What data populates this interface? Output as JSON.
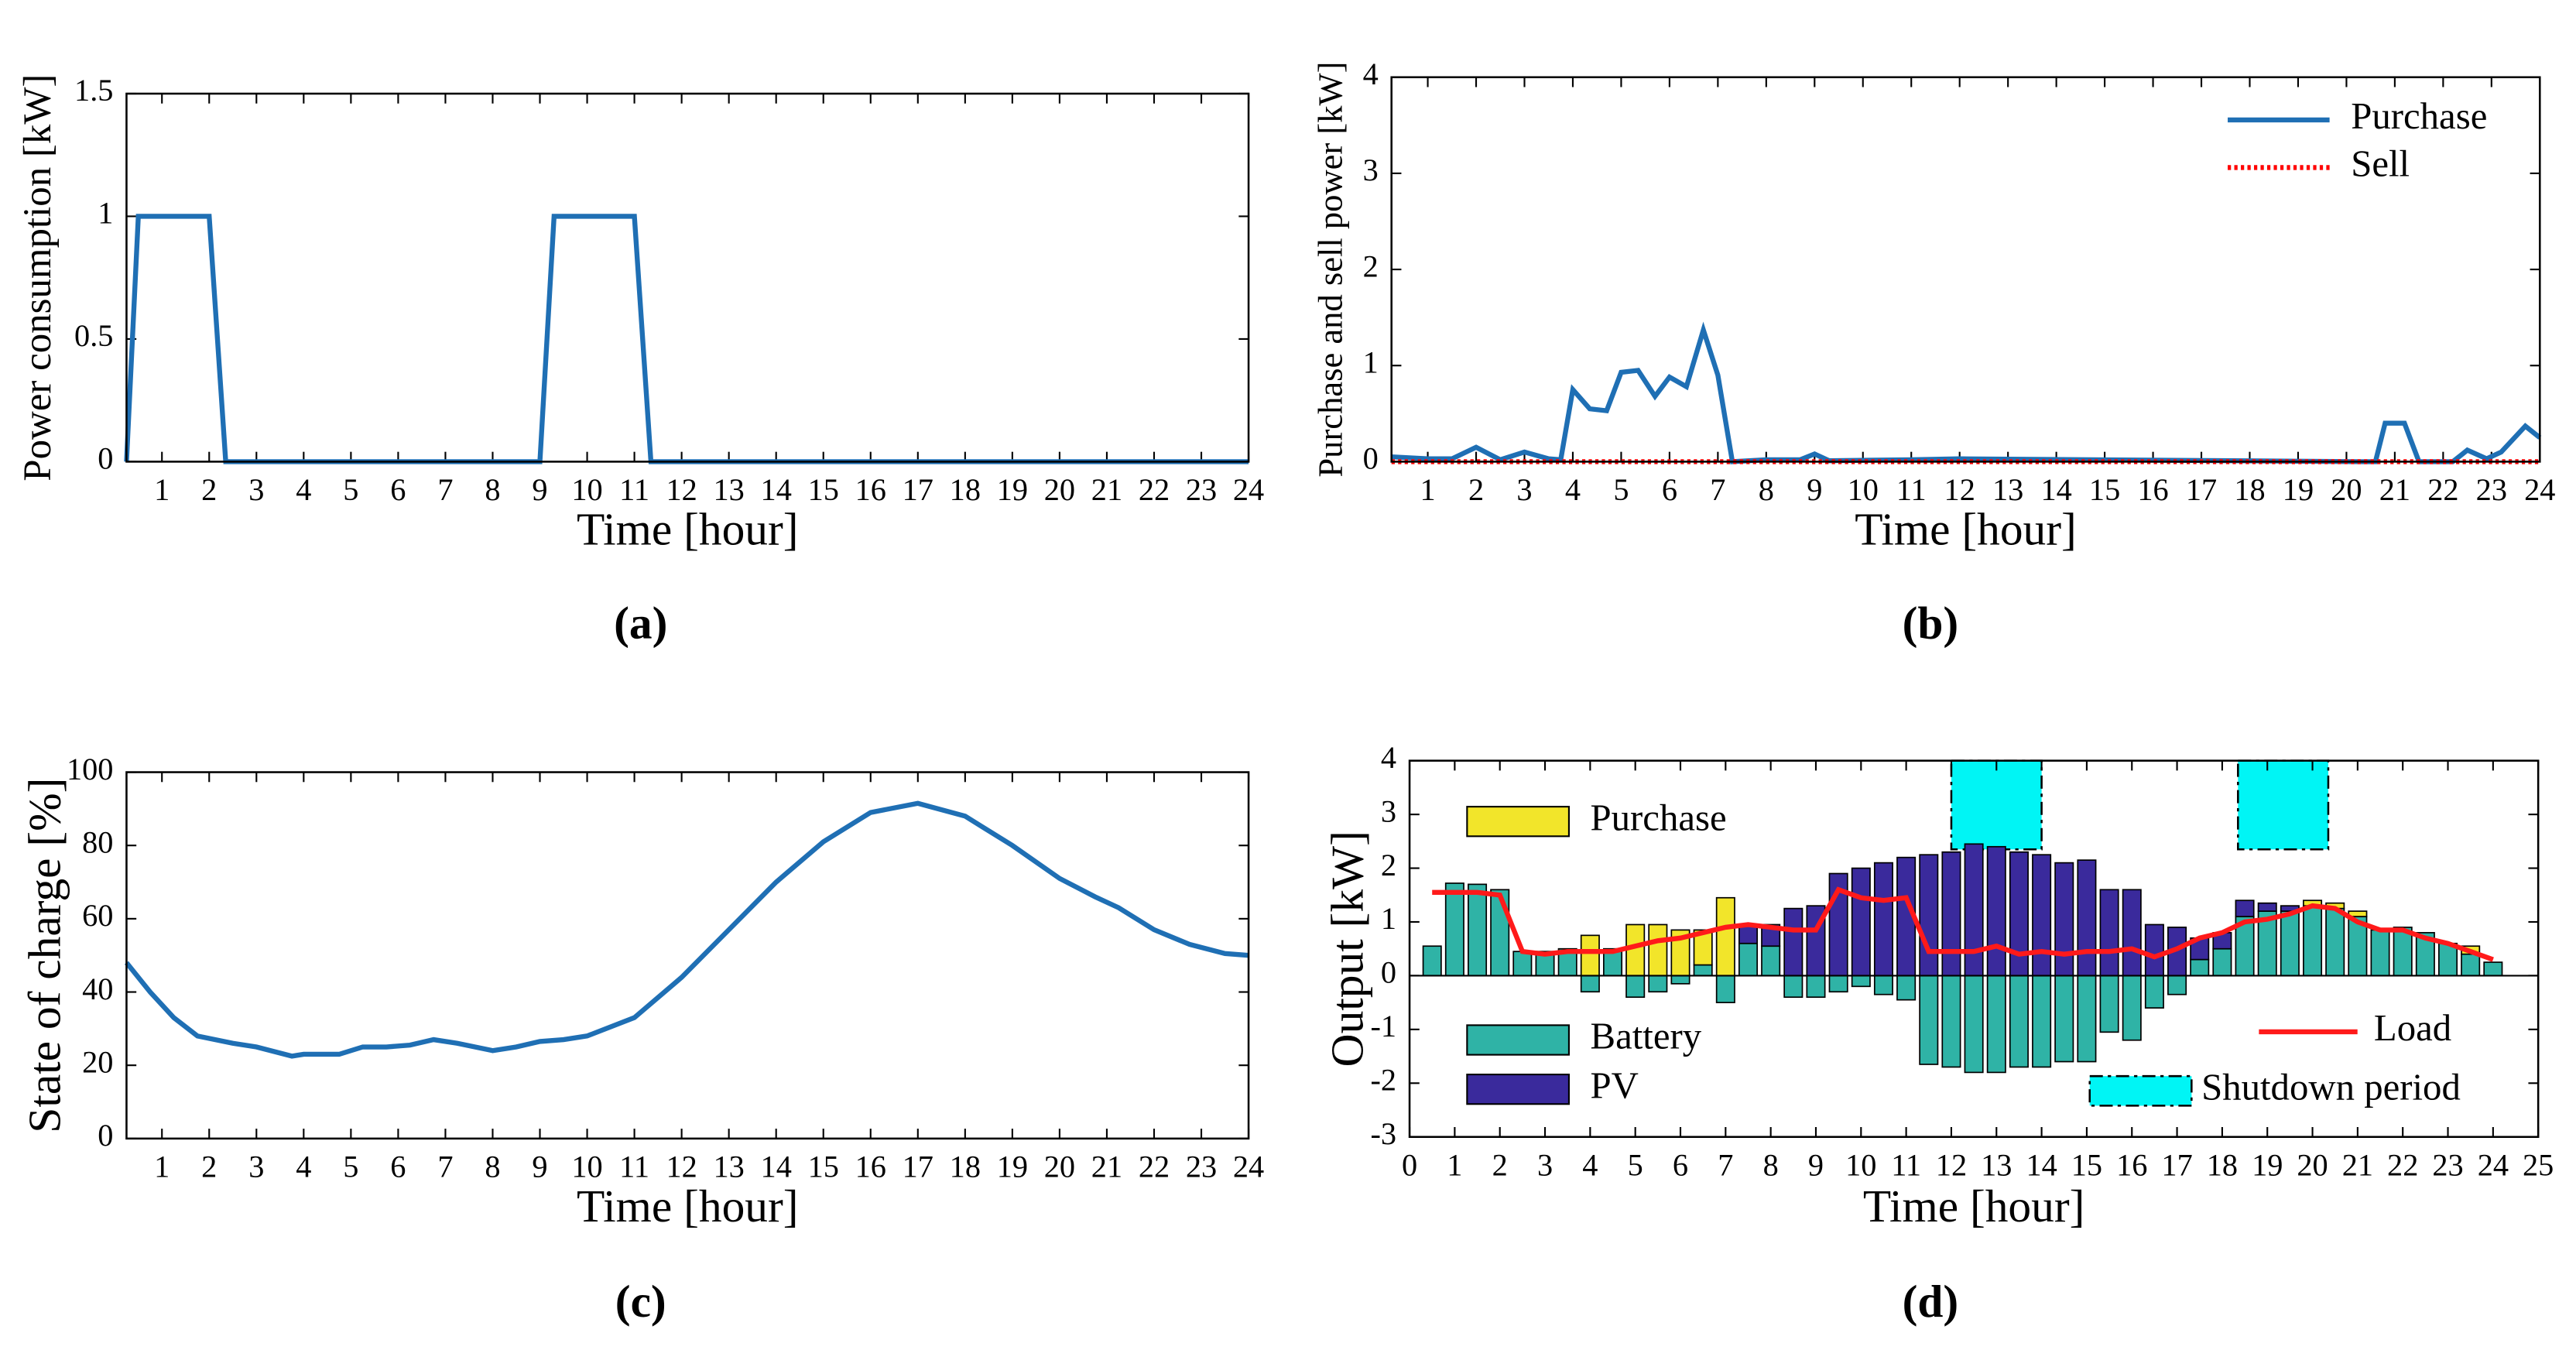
{
  "chart_data": [
    {
      "type": "line",
      "label": "(a)",
      "xlabel": "Time [hour]",
      "ylabel": "Power consumption [kW]",
      "color": "#1f6fb4",
      "x": [
        0.25,
        0.5,
        2,
        2.35,
        9,
        9.3,
        11,
        11.35,
        24
      ],
      "values": [
        0,
        1,
        1,
        0,
        0,
        1,
        1,
        0,
        0
      ],
      "xlim": [
        0.25,
        24
      ],
      "xticks": [
        1,
        2,
        3,
        4,
        5,
        6,
        7,
        8,
        9,
        10,
        11,
        12,
        13,
        14,
        15,
        16,
        17,
        18,
        19,
        20,
        21,
        22,
        23,
        24
      ],
      "ylim": [
        0,
        1.5
      ],
      "yticks": [
        0,
        0.5,
        1,
        1.5
      ]
    },
    {
      "type": "line",
      "label": "(b)",
      "xlabel": "Time [hour]",
      "ylabel": "Purchase and sell power [kW]",
      "legend": "upper right",
      "series": [
        {
          "name": "Purchase",
          "color": "#1f6fb4",
          "dash": "solid",
          "x": [
            0.25,
            1,
            1.5,
            2,
            2.5,
            3,
            3.5,
            3.75,
            4,
            4.35,
            4.7,
            5,
            5.35,
            5.7,
            6,
            6.35,
            6.7,
            7,
            7.3,
            8,
            8.7,
            9,
            9.3,
            11,
            12,
            20.3,
            20.6,
            20.8,
            21.2,
            21.5,
            22.2,
            22.5,
            22.9,
            23.2,
            23.7,
            24
          ],
          "values": [
            0.05,
            0.03,
            0.03,
            0.15,
            0.02,
            0.1,
            0.03,
            0.02,
            0.75,
            0.55,
            0.53,
            0.93,
            0.95,
            0.68,
            0.88,
            0.78,
            1.37,
            0.9,
            0,
            0.02,
            0.02,
            0.08,
            0.01,
            0.02,
            0.03,
            0,
            0,
            0.4,
            0.4,
            0,
            0,
            0.12,
            0.03,
            0.1,
            0.37,
            0.25
          ]
        },
        {
          "name": "Sell",
          "color": "#ff0000",
          "dash": "dotted",
          "x": [
            0.25,
            24
          ],
          "values": [
            0,
            0
          ]
        }
      ],
      "xlim": [
        0.25,
        24
      ],
      "xticks": [
        1,
        2,
        3,
        4,
        5,
        6,
        7,
        8,
        9,
        10,
        11,
        12,
        13,
        14,
        15,
        16,
        17,
        18,
        19,
        20,
        21,
        22,
        23,
        24
      ],
      "ylim": [
        0,
        4
      ],
      "yticks": [
        0,
        1,
        2,
        3,
        4
      ]
    },
    {
      "type": "line",
      "label": "(c)",
      "xlabel": "Time [hour]",
      "ylabel": "State of charge [%]",
      "color": "#1f6fb4",
      "x": [
        0.25,
        0.75,
        1.25,
        1.75,
        2.5,
        3,
        3.75,
        4,
        4.75,
        5.25,
        5.75,
        6.25,
        6.75,
        7.25,
        8,
        8.5,
        9,
        9.5,
        10,
        11,
        12,
        13,
        14,
        15,
        16,
        17,
        18,
        19,
        20,
        20.75,
        21.25,
        22,
        22.75,
        23.5,
        24
      ],
      "values": [
        48,
        40,
        33,
        28,
        26,
        25,
        22.5,
        23,
        23,
        25,
        25,
        25.5,
        27,
        26,
        24,
        25,
        26.5,
        27,
        28,
        33,
        44,
        57,
        70,
        81,
        89,
        91.5,
        88,
        80,
        71,
        66,
        63,
        57,
        53,
        50.5,
        50
      ],
      "xlim": [
        0.25,
        24
      ],
      "xticks": [
        1,
        2,
        3,
        4,
        5,
        6,
        7,
        8,
        9,
        10,
        11,
        12,
        13,
        14,
        15,
        16,
        17,
        18,
        19,
        20,
        21,
        22,
        23,
        24
      ],
      "ylim": [
        0,
        100
      ],
      "yticks": [
        0,
        20,
        40,
        60,
        80,
        100
      ]
    },
    {
      "type": "bar",
      "label": "(d)",
      "xlabel": "Time [hour]",
      "ylabel": "Output [kW]",
      "x": [
        0.5,
        1,
        1.5,
        2,
        2.5,
        3,
        3.5,
        4,
        4.5,
        5,
        5.5,
        6,
        6.5,
        7,
        7.5,
        8,
        8.5,
        9,
        9.5,
        10,
        10.5,
        11,
        11.5,
        12,
        12.5,
        13,
        13.5,
        14,
        14.5,
        15,
        15.5,
        16,
        16.5,
        17,
        17.5,
        18,
        18.5,
        19,
        19.5,
        20,
        20.5,
        21,
        21.5,
        22,
        22.5,
        23,
        23.5,
        24
      ],
      "series": [
        {
          "name": "Battery",
          "color": "#2fb3a6",
          "kind": "bar",
          "values": [
            0.55,
            1.72,
            1.7,
            1.6,
            0.45,
            0.45,
            0.5,
            -0.3,
            0.5,
            -0.4,
            -0.3,
            -0.15,
            0.2,
            -0.5,
            0.6,
            0.55,
            -0.4,
            -0.4,
            -0.3,
            -0.2,
            -0.35,
            -0.45,
            -1.65,
            -1.7,
            -1.8,
            -1.8,
            -1.7,
            -1.7,
            -1.6,
            -1.6,
            -1.05,
            -1.2,
            -0.6,
            -0.35,
            0.3,
            0.5,
            1.1,
            1.2,
            1.2,
            1.3,
            1.25,
            1.1,
            0.85,
            0.9,
            0.8,
            0.6,
            0.4,
            0.25
          ]
        },
        {
          "name": "PV",
          "color": "#3a2a9c",
          "kind": "bar",
          "values": [
            0,
            0,
            0,
            0,
            0,
            0,
            0,
            0,
            0,
            0,
            0,
            0,
            0,
            0,
            0.35,
            0.4,
            1.25,
            1.3,
            1.9,
            2.0,
            2.1,
            2.2,
            2.25,
            2.3,
            2.45,
            2.4,
            2.3,
            2.25,
            2.1,
            2.15,
            1.6,
            1.6,
            0.95,
            0.9,
            0.4,
            0.3,
            0.3,
            0.15,
            0.1,
            0,
            0,
            0,
            0,
            0,
            0,
            0,
            0,
            0
          ]
        },
        {
          "name": "Purchase",
          "color": "#f2e52a",
          "kind": "bar",
          "values": [
            0,
            0,
            0,
            0,
            0,
            0,
            0,
            0.75,
            0,
            0.95,
            0.95,
            0.85,
            0.65,
            1.45,
            0,
            0,
            0,
            0,
            0,
            0,
            0,
            0,
            0,
            0,
            0,
            0,
            0,
            0,
            0,
            0,
            0,
            0,
            0,
            0,
            0,
            0,
            0,
            0,
            0,
            0.1,
            0.1,
            0.1,
            0,
            0,
            0,
            0,
            0.15,
            0
          ]
        },
        {
          "name": "Load",
          "color": "#ff1a1a",
          "kind": "line",
          "values": [
            1.55,
            1.55,
            1.55,
            1.5,
            0.45,
            0.4,
            0.45,
            0.45,
            0.45,
            0.55,
            0.65,
            0.7,
            0.8,
            0.9,
            0.95,
            0.9,
            0.85,
            0.85,
            1.6,
            1.45,
            1.4,
            1.45,
            0.45,
            0.45,
            0.45,
            0.55,
            0.4,
            0.45,
            0.4,
            0.45,
            0.45,
            0.5,
            0.35,
            0.5,
            0.7,
            0.8,
            1.0,
            1.05,
            1.15,
            1.3,
            1.25,
            1.0,
            0.85,
            0.85,
            0.7,
            0.6,
            0.45,
            0.3
          ]
        }
      ],
      "spans": {
        "name": "Shutdown period",
        "color": "#00f5f5",
        "ranges": [
          {
            "x": [
              12,
              14
            ],
            "y": [
              2.35,
              4
            ]
          },
          {
            "x": [
              18.35,
              20.35
            ],
            "y": [
              2.35,
              4
            ]
          }
        ]
      },
      "bar_width": 0.4,
      "xlim": [
        0,
        25
      ],
      "xticks": [
        0,
        1,
        2,
        3,
        4,
        5,
        6,
        7,
        8,
        9,
        10,
        11,
        12,
        13,
        14,
        15,
        16,
        17,
        18,
        19,
        20,
        21,
        22,
        23,
        24,
        25
      ],
      "ylim": [
        -3,
        4
      ],
      "yticks": [
        -3,
        -2,
        -1,
        0,
        1,
        2,
        3,
        4
      ]
    }
  ]
}
